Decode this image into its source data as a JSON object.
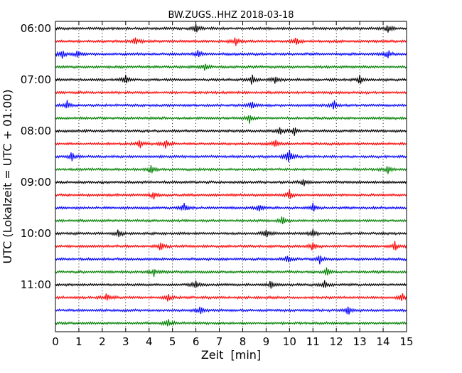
{
  "chart_data": {
    "type": "line",
    "title": "BW.ZUGS..HHZ 2018-03-18",
    "xlabel": "Zeit  [min]",
    "ylabel": "UTC (Lokalzeit = UTC + 01:00)",
    "xlim": [
      0,
      15
    ],
    "x_ticks": [
      "0",
      "1",
      "2",
      "3",
      "4",
      "5",
      "6",
      "7",
      "8",
      "9",
      "10",
      "11",
      "12",
      "13",
      "14",
      "15"
    ],
    "y_ticks": [
      "06:00",
      "07:00",
      "08:00",
      "09:00",
      "10:00",
      "11:00"
    ],
    "trace_interval_min": 15,
    "grid": true,
    "trace_colors": [
      "#000000",
      "#ff0000",
      "#0000ff",
      "#008000"
    ],
    "series": [
      {
        "start": "06:00",
        "events": [
          6.0,
          14.2
        ]
      },
      {
        "start": "06:15",
        "events": [
          3.4,
          7.7,
          10.3
        ]
      },
      {
        "start": "06:30",
        "events": [
          0.3,
          0.95,
          6.1,
          14.2
        ]
      },
      {
        "start": "06:45",
        "events": [
          6.4
        ]
      },
      {
        "start": "07:00",
        "events": [
          3.0,
          8.4,
          9.4,
          13.0
        ]
      },
      {
        "start": "07:15",
        "events": []
      },
      {
        "start": "07:30",
        "events": [
          0.5,
          8.4,
          11.9
        ]
      },
      {
        "start": "07:45",
        "events": [
          8.3
        ]
      },
      {
        "start": "08:00",
        "events": [
          9.6,
          10.2
        ]
      },
      {
        "start": "08:15",
        "events": [
          3.6,
          4.7,
          9.4
        ]
      },
      {
        "start": "08:30",
        "events": [
          0.7,
          9.9,
          10.0
        ]
      },
      {
        "start": "08:45",
        "events": [
          4.1,
          14.2
        ]
      },
      {
        "start": "09:00",
        "events": [
          10.6
        ]
      },
      {
        "start": "09:15",
        "events": [
          4.2,
          10.0
        ]
      },
      {
        "start": "09:30",
        "events": [
          5.5,
          8.7,
          11.0
        ]
      },
      {
        "start": "09:45",
        "events": [
          9.7
        ]
      },
      {
        "start": "10:00",
        "events": [
          2.7,
          9.0,
          11.0
        ]
      },
      {
        "start": "10:15",
        "events": [
          4.5,
          11.0,
          14.5
        ]
      },
      {
        "start": "10:30",
        "events": [
          9.9,
          11.3
        ]
      },
      {
        "start": "10:45",
        "events": [
          4.2,
          11.6
        ]
      },
      {
        "start": "11:00",
        "events": [
          6.0,
          9.2,
          11.5
        ]
      },
      {
        "start": "11:15",
        "events": [
          2.2,
          4.8,
          14.8
        ]
      },
      {
        "start": "11:30",
        "events": [
          6.2,
          12.5
        ]
      },
      {
        "start": "11:45",
        "events": [
          4.8
        ]
      }
    ]
  }
}
